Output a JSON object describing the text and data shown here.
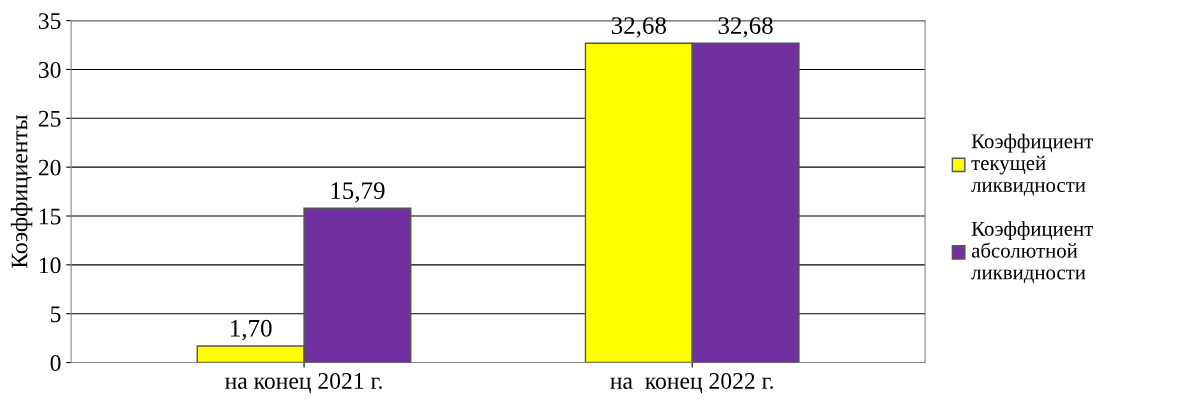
{
  "chart_data": {
    "type": "bar",
    "ylabel": "Коэффициенты",
    "categories": [
      "на конец 2021 г.",
      "на  конец 2022 г."
    ],
    "series": [
      {
        "name": "Коэффициент текущей ликвидности",
        "color": "#ffff00",
        "values": [
          1.7,
          32.68
        ],
        "value_labels": [
          "1,70",
          "32,68"
        ]
      },
      {
        "name": "Коэффициент абсолютной ликвидности",
        "color": "#7030a0",
        "values": [
          15.79,
          32.68
        ],
        "value_labels": [
          "15,79",
          "32,68"
        ]
      }
    ],
    "ylim": [
      0,
      35
    ],
    "yticks": [
      0,
      5,
      10,
      15,
      20,
      25,
      30,
      35
    ],
    "grid": "y",
    "legend": "right"
  }
}
